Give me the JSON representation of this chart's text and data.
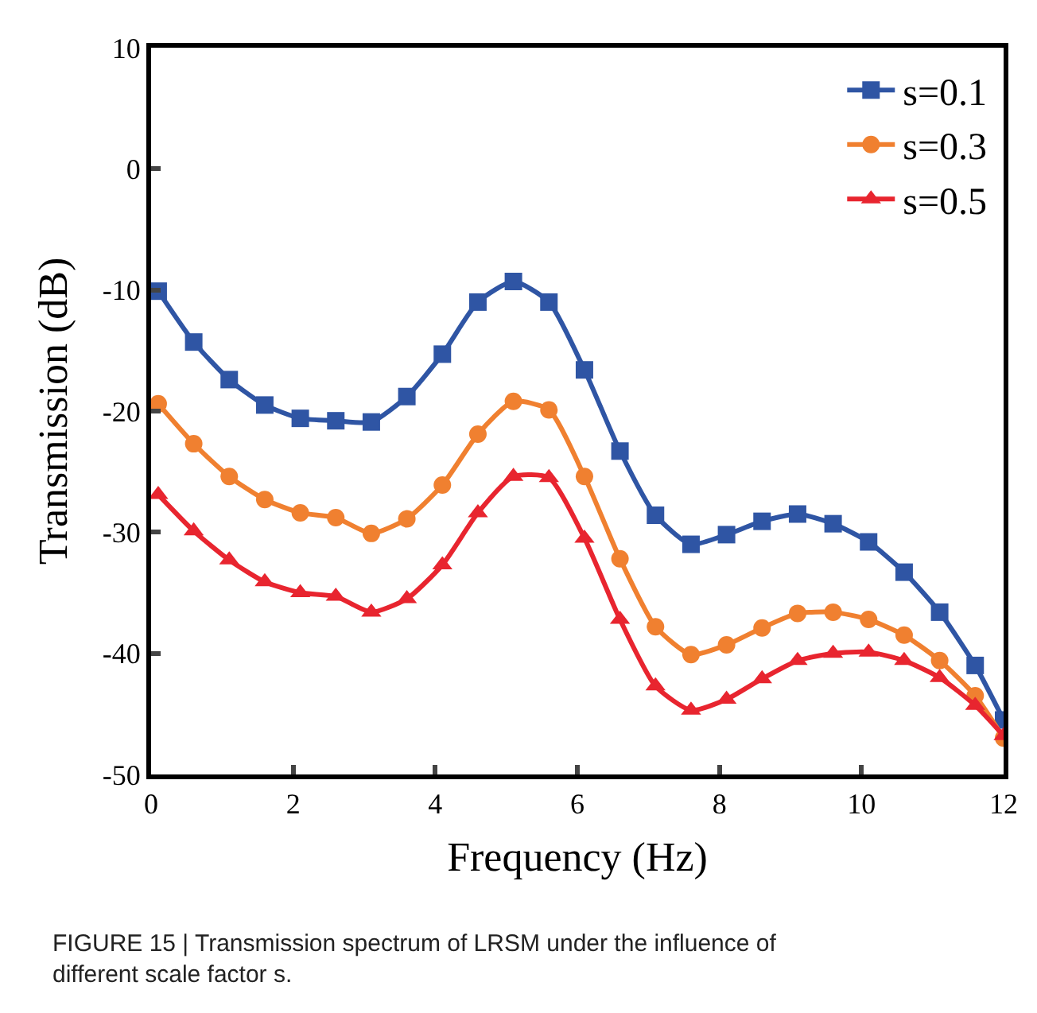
{
  "chart_data": {
    "type": "line",
    "xlabel": "Frequency (Hz)",
    "ylabel": "Transmission (dB)",
    "x": [
      0.1,
      0.6,
      1.1,
      1.6,
      2.1,
      2.6,
      3.1,
      3.6,
      4.1,
      4.6,
      5.1,
      5.6,
      6.1,
      6.6,
      7.1,
      7.6,
      8.1,
      8.6,
      9.1,
      9.6,
      10.1,
      10.6,
      11.1,
      11.6,
      12
    ],
    "series": [
      {
        "name": "s=0.1",
        "color": "#2f55a4",
        "marker": "square",
        "values": [
          -10.1,
          -14.3,
          -17.4,
          -19.5,
          -20.6,
          -20.8,
          -20.9,
          -18.8,
          -15.3,
          -11,
          -9.3,
          -11,
          -16.6,
          -23.3,
          -28.6,
          -31,
          -30.2,
          -29.1,
          -28.5,
          -29.3,
          -30.8,
          -33.3,
          -36.6,
          -41,
          -45.5
        ]
      },
      {
        "name": "s=0.3",
        "color": "#f08030",
        "marker": "circle",
        "values": [
          -19.4,
          -22.7,
          -25.4,
          -27.3,
          -28.4,
          -28.8,
          -30.1,
          -28.9,
          -26.1,
          -21.9,
          -19.2,
          -19.9,
          -25.4,
          -32.2,
          -37.8,
          -40.1,
          -39.3,
          -37.9,
          -36.7,
          -36.6,
          -37.2,
          -38.5,
          -40.6,
          -43.5,
          -47
        ]
      },
      {
        "name": "s=0.5",
        "color": "#e8252f",
        "marker": "triangle",
        "values": [
          -26.9,
          -29.9,
          -32.3,
          -34.1,
          -35,
          -35.3,
          -36.6,
          -35.5,
          -32.7,
          -28.4,
          -25.4,
          -25.5,
          -30.5,
          -37.2,
          -42.7,
          -44.7,
          -43.8,
          -42.1,
          -40.6,
          -40,
          -39.9,
          -40.6,
          -42,
          -44.3,
          -46.8
        ]
      }
    ],
    "xlim": [
      0,
      12
    ],
    "xticks": [
      0,
      2,
      4,
      6,
      8,
      10,
      12
    ],
    "ylim": [
      -50,
      10
    ],
    "yticks": [
      -50,
      -40,
      -30,
      -20,
      -10,
      0,
      10
    ],
    "legend": "top right",
    "annotations": [
      "FIGURE 15 | Transmission spectrum of LRSM under the influence of different scale factor s."
    ]
  }
}
